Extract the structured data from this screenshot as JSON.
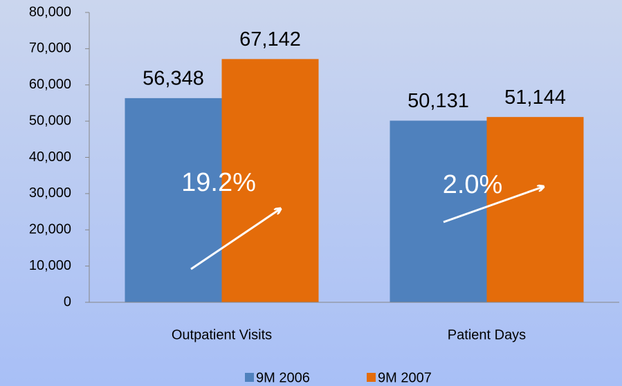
{
  "chart_data": {
    "type": "bar",
    "categories": [
      "Outpatient Visits",
      "Patient Days"
    ],
    "series": [
      {
        "name": "9M 2006",
        "color": "#4f81bd",
        "values": [
          56348,
          50131
        ],
        "value_labels": [
          "56,348",
          "50,131"
        ]
      },
      {
        "name": "9M 2007",
        "color": "#e46c0a",
        "values": [
          67142,
          51144
        ],
        "value_labels": [
          "67,142",
          "51,144"
        ]
      }
    ],
    "ylim": [
      0,
      80000
    ],
    "yticks": [
      0,
      {
        "value": 10000,
        "label": "10,000"
      },
      {
        "value": 20000,
        "label": "20,000"
      },
      {
        "value": 30000,
        "label": "30,000"
      },
      {
        "value": 40000,
        "label": "40,000"
      },
      {
        "value": 50000,
        "label": "50,000"
      },
      {
        "value": 60000,
        "label": "60,000"
      },
      {
        "value": 70000,
        "label": "70,000"
      },
      {
        "value": 80000,
        "label": "80,000"
      }
    ],
    "annotations": [
      "19.2%",
      "2.0%"
    ],
    "legend": "bottom"
  }
}
